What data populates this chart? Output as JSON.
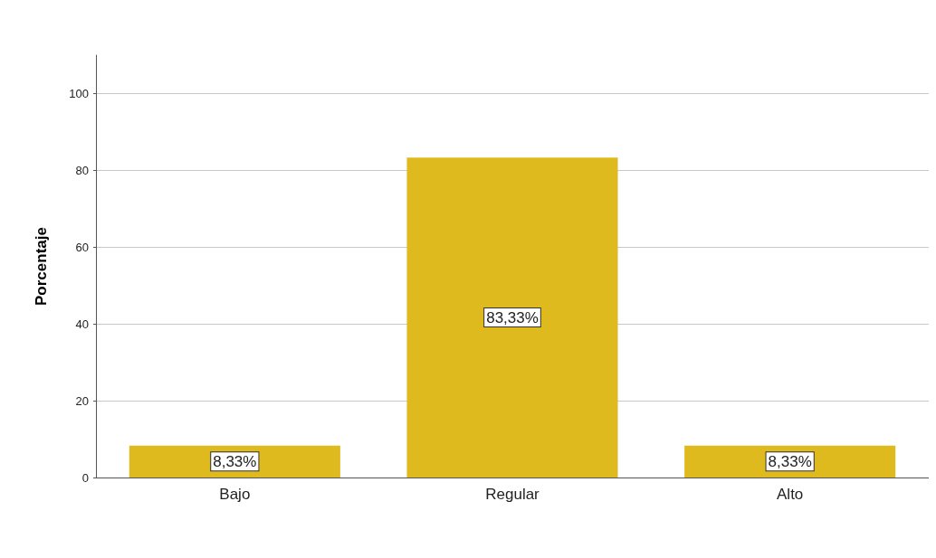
{
  "chart_data": {
    "type": "bar",
    "ylabel": "Porcentaje",
    "categories": [
      "Bajo",
      "Regular",
      "Alto"
    ],
    "values": [
      8.33,
      83.33,
      8.33
    ],
    "value_labels": [
      "8,33%",
      "83,33%",
      "8,33%"
    ],
    "color": "#dfba1e",
    "ylim": [
      0,
      110
    ],
    "yticks": [
      0,
      20,
      40,
      60,
      80,
      100
    ],
    "grid": "y"
  }
}
